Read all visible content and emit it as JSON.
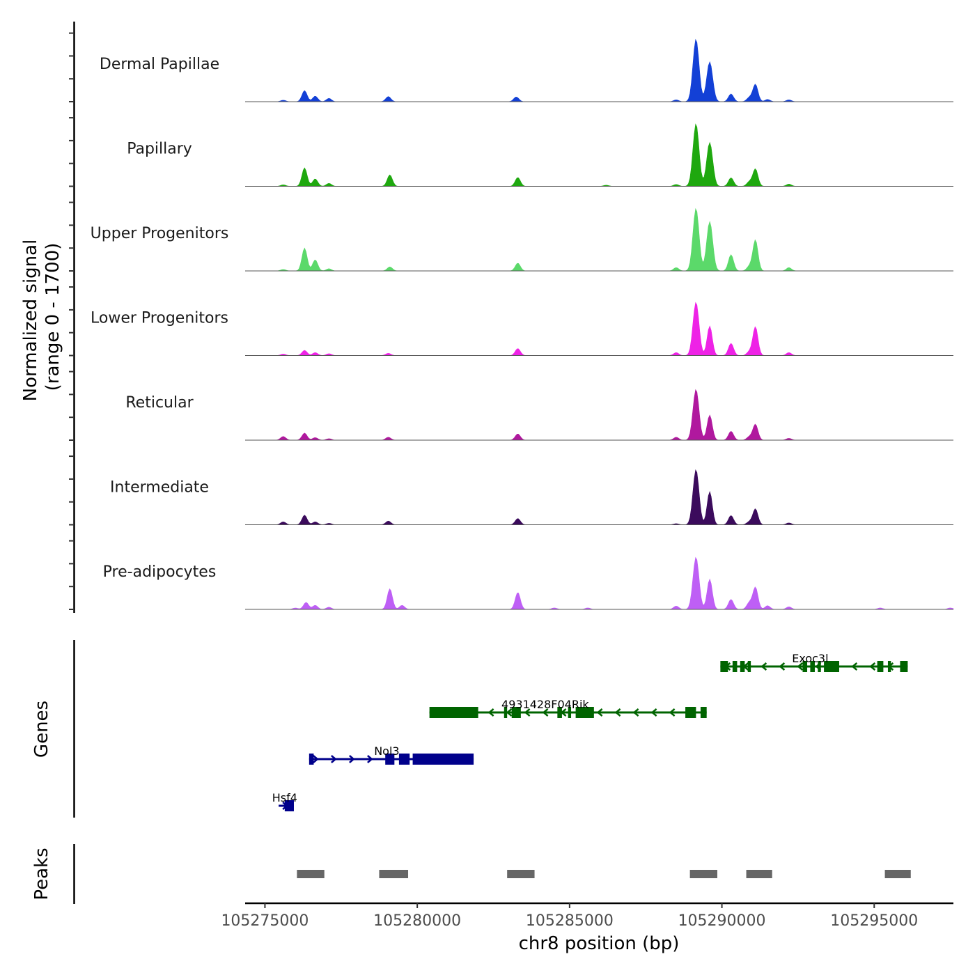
{
  "chart_data": {
    "type": "area",
    "title": "",
    "ylabel_line1": "Normalized signal",
    "ylabel_line2": "(range 0 - 1700)",
    "xlabel": "chr8 position (bp)",
    "y_range": [
      0,
      1700
    ],
    "x_range": [
      105274350,
      105297600
    ],
    "x_ticks": [
      105275000,
      105280000,
      105285000,
      105290000,
      105295000
    ],
    "x_tick_labels": [
      "105275000",
      "105280000",
      "105285000",
      "105290000",
      "105295000"
    ],
    "coverage_peak_positions": [
      105275600,
      105276350,
      105276650,
      105277100,
      105279100,
      105283300,
      105288500,
      105289150,
      105289600,
      105290300,
      105291100,
      105290900,
      105292200
    ],
    "series": [
      {
        "name": "Dermal Papillae",
        "color": "#1340d6",
        "peaks": [
          [
            105275600,
            40
          ],
          [
            105276300,
            300
          ],
          [
            105276650,
            150
          ],
          [
            105277100,
            90
          ],
          [
            105279050,
            140
          ],
          [
            105283250,
            130
          ],
          [
            105288500,
            50
          ],
          [
            105289150,
            1700
          ],
          [
            105289600,
            1080
          ],
          [
            105290300,
            210
          ],
          [
            105290900,
            110
          ],
          [
            105291100,
            470
          ],
          [
            105291500,
            60
          ],
          [
            105292200,
            50
          ]
        ]
      },
      {
        "name": "Papillary",
        "color": "#1fa80f",
        "peaks": [
          [
            105275600,
            40
          ],
          [
            105276300,
            500
          ],
          [
            105276650,
            200
          ],
          [
            105277100,
            80
          ],
          [
            105279100,
            310
          ],
          [
            105283300,
            240
          ],
          [
            105286200,
            30
          ],
          [
            105288500,
            50
          ],
          [
            105289150,
            1700
          ],
          [
            105289600,
            1190
          ],
          [
            105290300,
            230
          ],
          [
            105290900,
            120
          ],
          [
            105291100,
            470
          ],
          [
            105292200,
            60
          ]
        ]
      },
      {
        "name": "Upper Progenitors",
        "color": "#5bd96a",
        "peaks": [
          [
            105275600,
            40
          ],
          [
            105276300,
            620
          ],
          [
            105276650,
            300
          ],
          [
            105277100,
            60
          ],
          [
            105279100,
            110
          ],
          [
            105283300,
            210
          ],
          [
            105288500,
            90
          ],
          [
            105289150,
            1700
          ],
          [
            105289600,
            1340
          ],
          [
            105290300,
            440
          ],
          [
            105290900,
            120
          ],
          [
            105291100,
            840
          ],
          [
            105292200,
            90
          ]
        ]
      },
      {
        "name": "Lower Progenitors",
        "color": "#ee22e6",
        "peaks": [
          [
            105275600,
            40
          ],
          [
            105276300,
            140
          ],
          [
            105276650,
            80
          ],
          [
            105277100,
            50
          ],
          [
            105279050,
            60
          ],
          [
            105283300,
            190
          ],
          [
            105288500,
            80
          ],
          [
            105289150,
            1450
          ],
          [
            105289600,
            800
          ],
          [
            105290300,
            330
          ],
          [
            105290900,
            100
          ],
          [
            105291100,
            780
          ],
          [
            105292200,
            80
          ]
        ]
      },
      {
        "name": "Reticular",
        "color": "#b0189e",
        "peaks": [
          [
            105275600,
            100
          ],
          [
            105276300,
            190
          ],
          [
            105276650,
            70
          ],
          [
            105277100,
            40
          ],
          [
            105279050,
            80
          ],
          [
            105283300,
            170
          ],
          [
            105288500,
            80
          ],
          [
            105289150,
            1380
          ],
          [
            105289600,
            680
          ],
          [
            105290300,
            240
          ],
          [
            105290900,
            90
          ],
          [
            105291100,
            430
          ],
          [
            105292200,
            50
          ]
        ]
      },
      {
        "name": "Intermediate",
        "color": "#3b0b5c",
        "peaks": [
          [
            105275600,
            80
          ],
          [
            105276300,
            260
          ],
          [
            105276650,
            80
          ],
          [
            105277100,
            40
          ],
          [
            105279050,
            100
          ],
          [
            105283300,
            170
          ],
          [
            105288500,
            30
          ],
          [
            105289150,
            1500
          ],
          [
            105289600,
            900
          ],
          [
            105290300,
            250
          ],
          [
            105290900,
            80
          ],
          [
            105291100,
            430
          ],
          [
            105292200,
            50
          ]
        ]
      },
      {
        "name": "Pre-adipocytes",
        "color": "#be5ff5",
        "peaks": [
          [
            105276000,
            40
          ],
          [
            105276350,
            190
          ],
          [
            105276650,
            110
          ],
          [
            105277100,
            60
          ],
          [
            105279100,
            560
          ],
          [
            105279500,
            110
          ],
          [
            105283300,
            460
          ],
          [
            105284500,
            40
          ],
          [
            105285600,
            40
          ],
          [
            105288500,
            90
          ],
          [
            105289150,
            1420
          ],
          [
            105289600,
            820
          ],
          [
            105290300,
            270
          ],
          [
            105290900,
            180
          ],
          [
            105291100,
            600
          ],
          [
            105291500,
            100
          ],
          [
            105292200,
            70
          ],
          [
            105295200,
            40
          ],
          [
            105297500,
            40
          ]
        ]
      }
    ],
    "genes": [
      {
        "name": "Exoc3l",
        "strand": "-",
        "color": "#006400",
        "row": 0,
        "start": 105289950,
        "end": 105296100,
        "label_pos": 105292900,
        "exons": [
          [
            105289950,
            105290200
          ],
          [
            105290350,
            105290500
          ],
          [
            105290600,
            105290750
          ],
          [
            105290850,
            105290950
          ],
          [
            105292650,
            105292800
          ],
          [
            105292900,
            105293050
          ],
          [
            105293150,
            105293250
          ],
          [
            105293350,
            105293850
          ],
          [
            105295100,
            105295300
          ],
          [
            105295450,
            105295550
          ],
          [
            105295850,
            105296100
          ]
        ]
      },
      {
        "name": "4931428F04Rik",
        "strand": "-",
        "color": "#006400",
        "row": 1,
        "start": 105280400,
        "end": 105289500,
        "label_pos": 105284200,
        "exons": [
          [
            105280400,
            105282000
          ],
          [
            105282850,
            105282950
          ],
          [
            105283100,
            105283400
          ],
          [
            105284600,
            105284750
          ],
          [
            105284950,
            105285050
          ],
          [
            105285200,
            105285800
          ],
          [
            105288800,
            105289150
          ],
          [
            105289300,
            105289500
          ]
        ]
      },
      {
        "name": "Nol3",
        "strand": "+",
        "color": "#00008b",
        "row": 2,
        "start": 105276450,
        "end": 105281850,
        "label_pos": 105279000,
        "exons": [
          [
            105276450,
            105276600
          ],
          [
            105278950,
            105279250
          ],
          [
            105279400,
            105279750
          ],
          [
            105279850,
            105281850
          ]
        ]
      },
      {
        "name": "Hsf4",
        "strand": "+",
        "color": "#00008b",
        "row": 3,
        "start": 105275450,
        "end": 105275950,
        "label_pos": 105275650,
        "exons": [
          [
            105275650,
            105275950
          ]
        ]
      }
    ],
    "peaks_track": {
      "label": "Peaks",
      "color": "#666666",
      "regions": [
        [
          105276050,
          105276950
        ],
        [
          105278750,
          105279700
        ],
        [
          105282950,
          105283850
        ],
        [
          105288950,
          105289850
        ],
        [
          105290800,
          105291650
        ],
        [
          105295350,
          105296200
        ]
      ]
    },
    "genes_track_label": "Genes",
    "grid": false
  }
}
